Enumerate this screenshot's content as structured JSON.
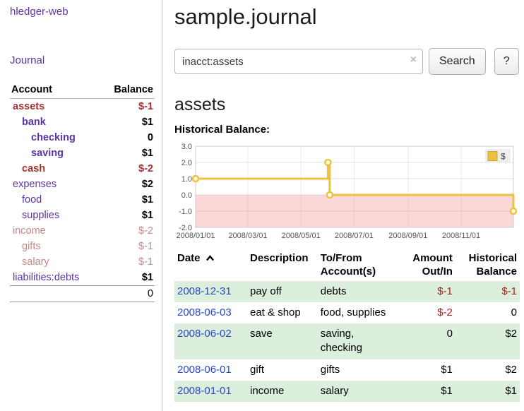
{
  "app": {
    "brand": "hledger-web",
    "nav": "Journal"
  },
  "sidebar": {
    "header": {
      "account": "Account",
      "balance": "Balance"
    },
    "accounts": [
      {
        "name": "assets",
        "balance": "$-1",
        "depth": 0,
        "tone": "strong-neg"
      },
      {
        "name": "bank",
        "balance": "$1",
        "depth": 1,
        "tone": "strong"
      },
      {
        "name": "checking",
        "balance": "0",
        "depth": 2,
        "tone": "strong"
      },
      {
        "name": "saving",
        "balance": "$1",
        "depth": 2,
        "tone": "strong"
      },
      {
        "name": "cash",
        "balance": "$-2",
        "depth": 1,
        "tone": "strong-neg"
      },
      {
        "name": "expenses",
        "balance": "$2",
        "depth": 0,
        "tone": "plain"
      },
      {
        "name": "food",
        "balance": "$1",
        "depth": 1,
        "tone": "plain"
      },
      {
        "name": "supplies",
        "balance": "$1",
        "depth": 1,
        "tone": "plain"
      },
      {
        "name": "income",
        "balance": "$-2",
        "depth": 0,
        "tone": "soft-neg"
      },
      {
        "name": "gifts",
        "balance": "$-1",
        "depth": 1,
        "tone": "soft-neg"
      },
      {
        "name": "salary",
        "balance": "$-1",
        "depth": 1,
        "tone": "soft-neg"
      },
      {
        "name": "liabilities:debts",
        "balance": "$1",
        "depth": 0,
        "tone": "plain"
      }
    ],
    "total": "0"
  },
  "main": {
    "title": "sample.journal",
    "search": {
      "value": "inacct:assets",
      "clear_icon": "×",
      "button_label": "Search",
      "help_label": "?"
    },
    "account_heading": "assets",
    "chart_title": "Historical Balance:"
  },
  "chart_data": {
    "type": "line",
    "step": true,
    "title": "Historical Balance",
    "series": [
      {
        "name": "$",
        "color": "#edc240",
        "points": [
          [
            "2008-01-01",
            1
          ],
          [
            "2008-06-01",
            2
          ],
          [
            "2008-06-03",
            0
          ],
          [
            "2008-12-31",
            -1
          ]
        ]
      }
    ],
    "ylim": [
      -2,
      3
    ],
    "yticks": [
      "3.0",
      "2.0",
      "1.0",
      "0.0",
      "-1.0",
      "-2.0"
    ],
    "xticks": [
      "2008/01/01",
      "2008/03/01",
      "2008/05/01",
      "2008/07/01",
      "2008/09/01",
      "2008/11/01"
    ],
    "negative_region_color": "#fbd7d7",
    "grid": true,
    "legend_position": "top-right"
  },
  "table": {
    "headers": [
      "Date",
      "Description",
      "To/From Account(s)",
      "Amount Out/In",
      "Historical Balance"
    ],
    "rows": [
      {
        "date": "2008-12-31",
        "description": "pay off",
        "accounts": "debts",
        "amount": "$-1",
        "balance": "$-1"
      },
      {
        "date": "2008-06-03",
        "description": "eat & shop",
        "accounts": "food, supplies",
        "amount": "$-2",
        "balance": "0"
      },
      {
        "date": "2008-06-02",
        "description": "save",
        "accounts": "saving, checking",
        "amount": "0",
        "balance": "$2"
      },
      {
        "date": "2008-06-01",
        "description": "gift",
        "accounts": "gifts",
        "amount": "$1",
        "balance": "$2"
      },
      {
        "date": "2008-01-01",
        "description": "income",
        "accounts": "salary",
        "amount": "$1",
        "balance": "$1"
      }
    ]
  },
  "colors": {
    "link_purple": "#5c35a6",
    "neg_red": "#a03230",
    "soft_red": "#c18987",
    "date_blue": "#2b48c8",
    "stripe_green": "#dceedc",
    "series_gold": "#edc240"
  }
}
